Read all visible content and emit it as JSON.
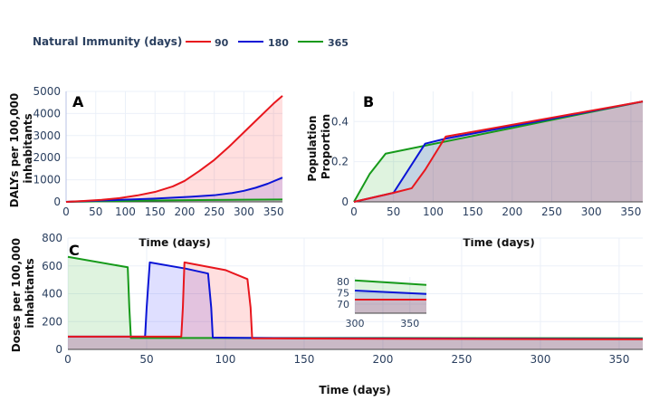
{
  "legend": {
    "title": "Natural Immunity (days)",
    "entries": [
      {
        "label": "90",
        "color": "#e8161d"
      },
      {
        "label": "180",
        "color": "#0a14d6"
      },
      {
        "label": "365",
        "color": "#169a1a"
      }
    ]
  },
  "colors": {
    "fill_90": "#ff000020",
    "fill_180": "#0000ff20",
    "fill_365": "#00a00020"
  },
  "chart_data": [
    {
      "type": "area",
      "panel": "A",
      "xlabel": "Time (days)",
      "ylabel": "DALYs per 100,000 inhabitants",
      "xlim": [
        0,
        365
      ],
      "ylim": [
        0,
        5000
      ],
      "xticks": [
        0,
        50,
        100,
        150,
        200,
        250,
        300,
        350
      ],
      "yticks": [
        0,
        1000,
        2000,
        3000,
        4000,
        5000
      ],
      "series": [
        {
          "name": "90",
          "x": [
            0,
            30,
            60,
            90,
            120,
            150,
            180,
            200,
            225,
            250,
            275,
            300,
            325,
            350,
            365
          ],
          "y": [
            0,
            40,
            90,
            170,
            290,
            450,
            700,
            950,
            1400,
            1900,
            2500,
            3150,
            3800,
            4450,
            4800
          ]
        },
        {
          "name": "180",
          "x": [
            0,
            30,
            60,
            90,
            120,
            150,
            180,
            210,
            250,
            280,
            300,
            320,
            340,
            365
          ],
          "y": [
            0,
            30,
            60,
            90,
            120,
            150,
            190,
            230,
            300,
            400,
            500,
            640,
            820,
            1100
          ]
        },
        {
          "name": "365",
          "x": [
            0,
            50,
            100,
            150,
            200,
            250,
            300,
            365
          ],
          "y": [
            0,
            20,
            40,
            60,
            75,
            85,
            95,
            110
          ]
        }
      ]
    },
    {
      "type": "area",
      "panel": "B",
      "xlabel": "Time (days)",
      "ylabel": "Population Proportion",
      "xlim": [
        0,
        365
      ],
      "ylim": [
        0,
        0.55
      ],
      "xticks": [
        0,
        50,
        100,
        150,
        200,
        250,
        300,
        350
      ],
      "yticks": [
        0,
        0.2,
        0.4
      ],
      "series": [
        {
          "name": "90",
          "x": [
            0,
            50,
            73,
            90,
            116,
            365
          ],
          "y": [
            0,
            0.045,
            0.068,
            0.16,
            0.325,
            0.5
          ]
        },
        {
          "name": "180",
          "x": [
            0,
            50,
            90,
            116,
            365
          ],
          "y": [
            0,
            0.045,
            0.29,
            0.315,
            0.5
          ]
        },
        {
          "name": "365",
          "x": [
            0,
            20,
            40,
            365
          ],
          "y": [
            0,
            0.14,
            0.24,
            0.5
          ]
        }
      ]
    },
    {
      "type": "area",
      "panel": "C",
      "xlabel": "Time (days)",
      "ylabel": "Doses per 100,000 inhabitants",
      "xlim": [
        0,
        365
      ],
      "ylim": [
        0,
        800
      ],
      "xticks": [
        0,
        50,
        100,
        150,
        200,
        250,
        300,
        350
      ],
      "yticks": [
        0,
        200,
        400,
        600,
        800
      ],
      "series": [
        {
          "name": "90",
          "x": [
            0,
            72,
            73,
            74,
            100,
            114,
            116,
            117,
            150,
            365
          ],
          "y": [
            92,
            92,
            300,
            625,
            570,
            505,
            300,
            80,
            78,
            72
          ]
        },
        {
          "name": "180",
          "x": [
            0,
            49,
            50,
            52,
            75,
            89,
            91,
            92,
            150,
            365
          ],
          "y": [
            92,
            92,
            300,
            625,
            580,
            545,
            300,
            85,
            80,
            75
          ]
        },
        {
          "name": "365",
          "x": [
            0,
            38,
            39,
            40,
            100,
            200,
            365
          ],
          "y": [
            665,
            590,
            300,
            82,
            82,
            82,
            80
          ]
        }
      ],
      "inset": {
        "xlim": [
          300,
          365
        ],
        "ylim": [
          66,
          82
        ],
        "xticks": [
          300,
          350
        ],
        "yticks": [
          70,
          75,
          80
        ],
        "series": [
          {
            "name": "90",
            "x": [
              300,
              365
            ],
            "y": [
              72,
              72
            ]
          },
          {
            "name": "180",
            "x": [
              300,
              365
            ],
            "y": [
              76,
              74.5
            ]
          },
          {
            "name": "365",
            "x": [
              300,
              365
            ],
            "y": [
              80.5,
              78.5
            ]
          }
        ]
      }
    }
  ]
}
